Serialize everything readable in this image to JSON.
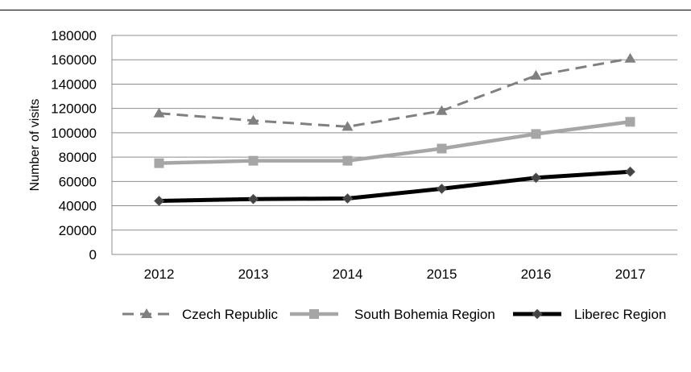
{
  "chart_data": {
    "type": "line",
    "categories": [
      "2012",
      "2013",
      "2014",
      "2015",
      "2016",
      "2017"
    ],
    "ylabel": "Number of visits",
    "ylim": [
      0,
      180000
    ],
    "yticks": [
      "0",
      "20000",
      "40000",
      "60000",
      "80000",
      "100000",
      "120000",
      "140000",
      "160000",
      "180000"
    ],
    "grid": true,
    "legend_position": "bottom",
    "series": [
      {
        "name": "Czech Republic",
        "values": [
          116000,
          110000,
          105000,
          118000,
          147000,
          161000
        ],
        "color": "#808080",
        "style": "dashed",
        "marker": "triangle"
      },
      {
        "name": "South Bohemia Region",
        "values": [
          75000,
          77000,
          77000,
          87000,
          99000,
          109000
        ],
        "color": "#a6a6a6",
        "style": "solid",
        "marker": "square"
      },
      {
        "name": "Liberec Region",
        "values": [
          44000,
          45500,
          46000,
          54000,
          63000,
          68000
        ],
        "color": "#000000",
        "style": "solid",
        "marker": "diamond"
      }
    ]
  }
}
